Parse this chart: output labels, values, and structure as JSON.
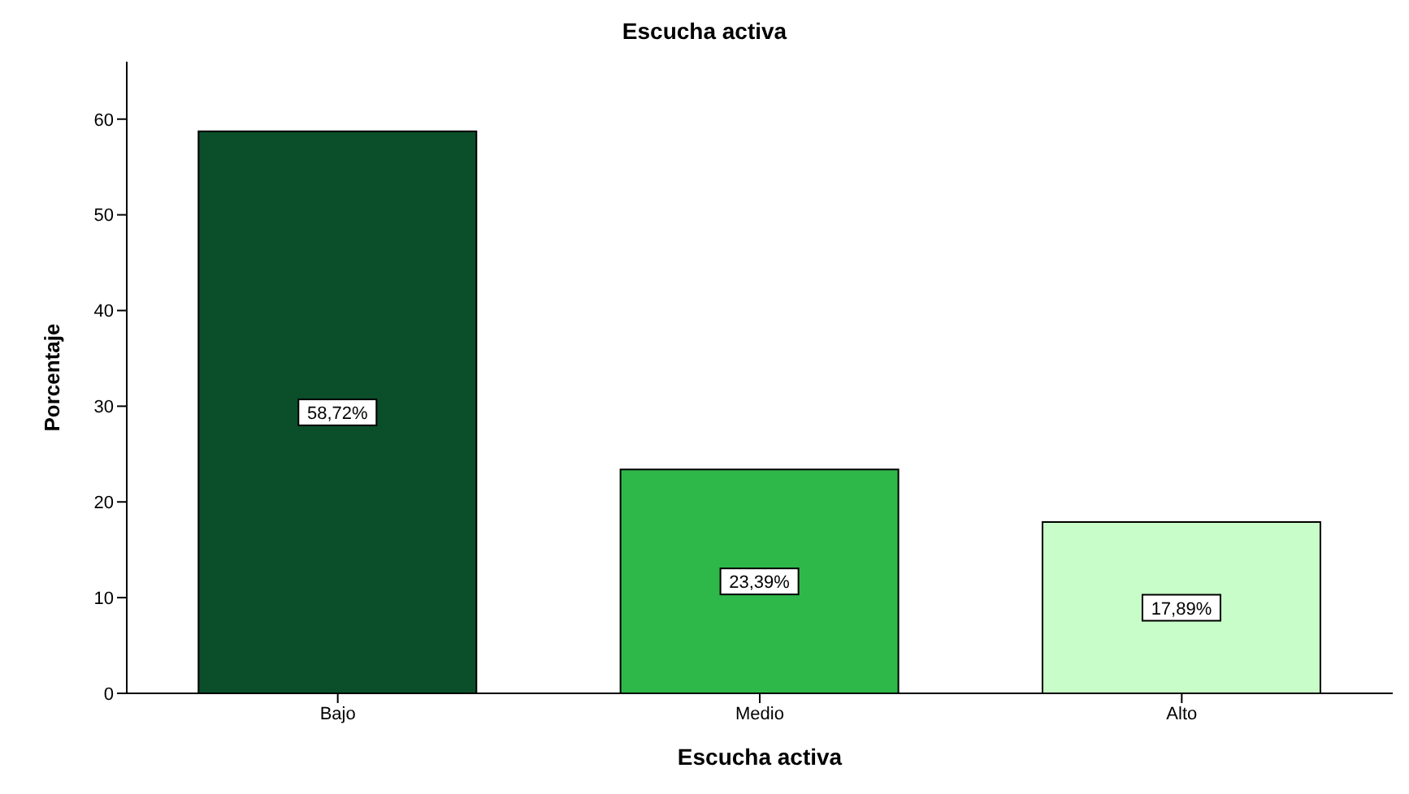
{
  "chart_data": {
    "type": "bar",
    "title": "Escucha activa",
    "xlabel": "Escucha activa",
    "ylabel": "Porcentaje",
    "categories": [
      "Bajo",
      "Medio",
      "Alto"
    ],
    "values": [
      58.72,
      23.39,
      17.89
    ],
    "colors": [
      "#0b4f2a",
      "#2eb84a",
      "#c8fcc8"
    ],
    "value_labels": [
      "58,72%",
      "23,39%",
      "17,89%"
    ],
    "ylim": [
      0,
      66
    ],
    "yticks": [
      0,
      10,
      20,
      30,
      40,
      50,
      60
    ],
    "grid": false,
    "legend": false
  }
}
